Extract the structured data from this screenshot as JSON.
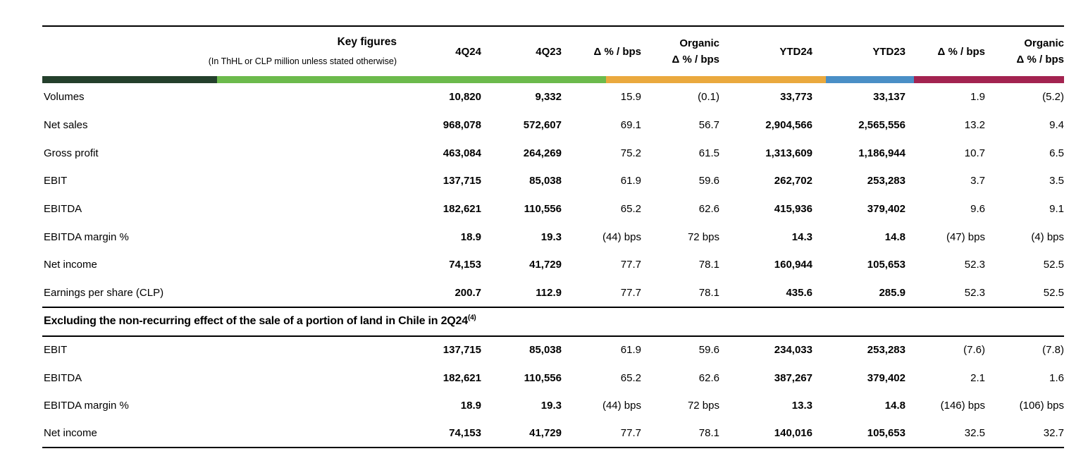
{
  "table": {
    "title": "Key figures",
    "subtitle": "(In ThHL or CLP million unless stated otherwise)",
    "columns": [
      {
        "label": "4Q24"
      },
      {
        "label": "4Q23"
      },
      {
        "label": "Δ % / bps"
      },
      {
        "top": "Organic",
        "label": "Δ % / bps"
      },
      {
        "label": "YTD24"
      },
      {
        "label": "YTD23"
      },
      {
        "label": "Δ % / bps"
      },
      {
        "top": "Organic",
        "label": "Δ % / bps"
      }
    ]
  },
  "color_bar": {
    "segments": [
      {
        "name": "dark-green",
        "color": "#24402c",
        "width_pct": 17.1
      },
      {
        "name": "light-green",
        "color": "#6cba4c",
        "width_pct": 38.1
      },
      {
        "name": "orange",
        "color": "#eaa93e",
        "width_pct": 21.5
      },
      {
        "name": "blue",
        "color": "#4a8fc6",
        "width_pct": 8.6
      },
      {
        "name": "crimson",
        "color": "#a32350",
        "width_pct": 14.7
      }
    ]
  },
  "sections": [
    {
      "rows": [
        {
          "label": "Volumes",
          "values": [
            "10,820",
            "9,332",
            "15.9",
            "(0.1)",
            "33,773",
            "33,137",
            "1.9",
            "(5.2)"
          ]
        },
        {
          "label": "Net sales",
          "values": [
            "968,078",
            "572,607",
            "69.1",
            "56.7",
            "2,904,566",
            "2,565,556",
            "13.2",
            "9.4"
          ]
        },
        {
          "label": "Gross profit",
          "values": [
            "463,084",
            "264,269",
            "75.2",
            "61.5",
            "1,313,609",
            "1,186,944",
            "10.7",
            "6.5"
          ]
        },
        {
          "label": "EBIT",
          "values": [
            "137,715",
            "85,038",
            "61.9",
            "59.6",
            "262,702",
            "253,283",
            "3.7",
            "3.5"
          ]
        },
        {
          "label": "EBITDA",
          "values": [
            "182,621",
            "110,556",
            "65.2",
            "62.6",
            "415,936",
            "379,402",
            "9.6",
            "9.1"
          ]
        },
        {
          "label": "EBITDA margin %",
          "values": [
            "18.9",
            "19.3",
            "(44) bps",
            "72 bps",
            "14.3",
            "14.8",
            "(47) bps",
            "(4) bps"
          ]
        },
        {
          "label": "Net income",
          "values": [
            "74,153",
            "41,729",
            "77.7",
            "78.1",
            "160,944",
            "105,653",
            "52.3",
            "52.5"
          ]
        },
        {
          "label": "Earnings per share (CLP)",
          "values": [
            "200.7",
            "112.9",
            "77.7",
            "78.1",
            "435.6",
            "285.9",
            "52.3",
            "52.5"
          ]
        }
      ]
    },
    {
      "header": "Excluding the non-recurring effect of the sale of a portion of land in Chile in 2Q24",
      "header_superscript": "(4)",
      "rows": [
        {
          "label": "EBIT",
          "values": [
            "137,715",
            "85,038",
            "61.9",
            "59.6",
            "234,033",
            "253,283",
            "(7.6)",
            "(7.8)"
          ]
        },
        {
          "label": "EBITDA",
          "values": [
            "182,621",
            "110,556",
            "65.2",
            "62.6",
            "387,267",
            "379,402",
            "2.1",
            "1.6"
          ]
        },
        {
          "label": "EBITDA margin %",
          "values": [
            "18.9",
            "19.3",
            "(44) bps",
            "72 bps",
            "13.3",
            "14.8",
            "(146) bps",
            "(106) bps"
          ]
        },
        {
          "label": "Net income",
          "values": [
            "74,153",
            "41,729",
            "77.7",
            "78.1",
            "140,016",
            "105,653",
            "32.5",
            "32.7"
          ]
        }
      ]
    }
  ]
}
